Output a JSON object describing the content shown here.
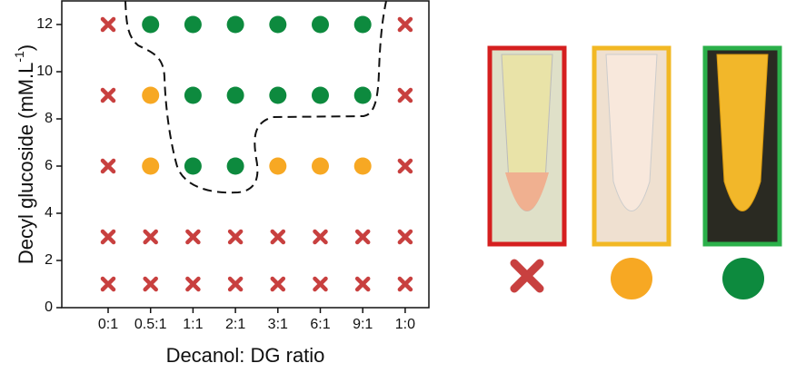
{
  "chart_data": {
    "type": "scatter",
    "xlabel": "Decanol: DG ratio",
    "ylabel": "Decyl glucoside (mM.L",
    "ylabel_sup": "-1",
    "ylabel_end": ")",
    "categories": [
      "0:1",
      "0.5:1",
      "1:1",
      "2:1",
      "3:1",
      "6:1",
      "9:1",
      "1:0"
    ],
    "ylim": [
      0,
      13
    ],
    "yticks": [
      0,
      2,
      4,
      6,
      8,
      10,
      12
    ],
    "series": [
      {
        "marker": "cross",
        "color": "#c8403f",
        "x": [
          "0:1",
          "1:0",
          "0:1",
          "1:0",
          "0:1",
          "1:0",
          "0:1",
          "0.5:1",
          "1:1",
          "2:1",
          "3:1",
          "6:1",
          "9:1",
          "1:0",
          "0:1",
          "0.5:1",
          "1:1",
          "2:1",
          "3:1",
          "6:1",
          "9:1",
          "1:0"
        ],
        "values": [
          12,
          12,
          9,
          9,
          6,
          6,
          3,
          3,
          3,
          3,
          3,
          3,
          3,
          3,
          1,
          1,
          1,
          1,
          1,
          1,
          1,
          1
        ]
      },
      {
        "marker": "circle",
        "color": "#f7a823",
        "x": [
          "0.5:1",
          "0.5:1",
          "3:1",
          "6:1",
          "9:1"
        ],
        "values": [
          9,
          6,
          6,
          6,
          6
        ]
      },
      {
        "marker": "circle",
        "color": "#0d8a3e",
        "x": [
          "0.5:1",
          "1:1",
          "2:1",
          "3:1",
          "6:1",
          "9:1",
          "1:1",
          "2:1",
          "3:1",
          "6:1",
          "9:1",
          "1:1",
          "2:1"
        ],
        "values": [
          12,
          12,
          12,
          12,
          12,
          12,
          9,
          9,
          9,
          9,
          9,
          6,
          6
        ]
      }
    ]
  }
}
